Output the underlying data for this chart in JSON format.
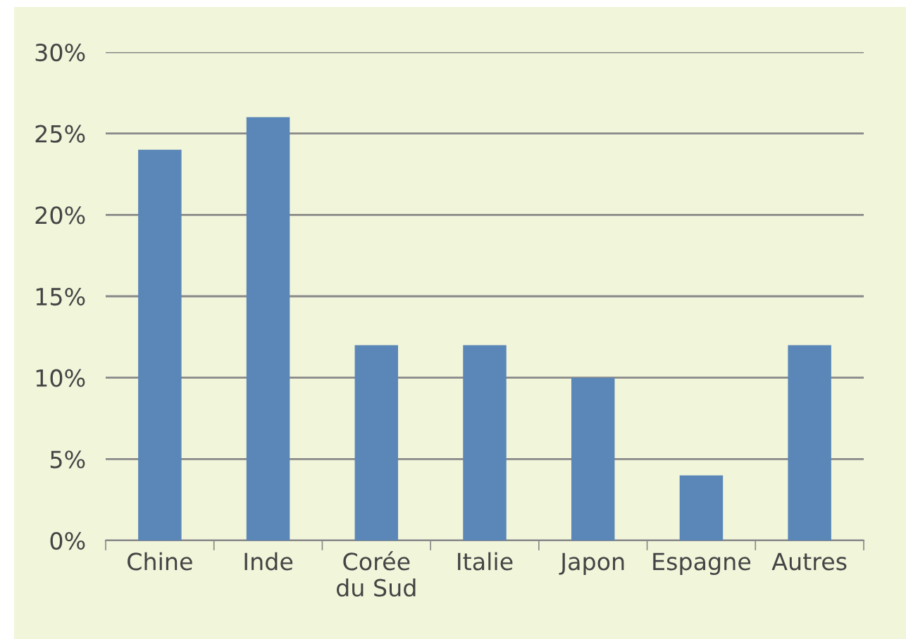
{
  "chart_data": {
    "type": "bar",
    "categories": [
      "Chine",
      "Inde",
      "Corée\ndu Sud",
      "Italie",
      "Japon",
      "Espagne",
      "Autres"
    ],
    "values": [
      24,
      26,
      12,
      12,
      10,
      4,
      12
    ],
    "color": "#5b87b8",
    "ylim": [
      0,
      30
    ],
    "yticks": [
      {
        "value": 0,
        "label": "0%"
      },
      {
        "value": 5,
        "label": "5%"
      },
      {
        "value": 10,
        "label": "10%"
      },
      {
        "value": 15,
        "label": "15%"
      },
      {
        "value": 20,
        "label": "20%"
      },
      {
        "value": 25,
        "label": "25%"
      },
      {
        "value": 30,
        "label": "30%"
      }
    ],
    "grid": "y"
  }
}
